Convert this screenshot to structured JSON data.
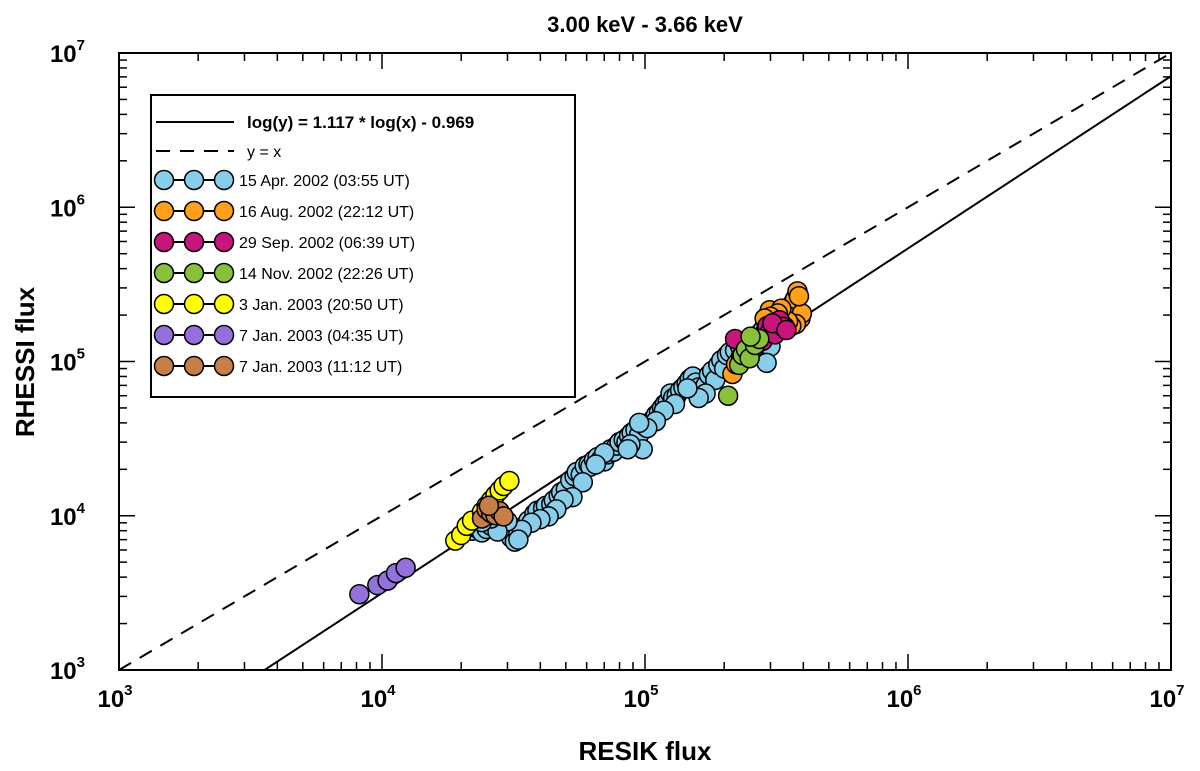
{
  "chart_data": {
    "type": "scatter",
    "title": "3.00 keV - 3.66 keV",
    "xlabel": "RESIK flux",
    "ylabel": "RHESSI flux",
    "xscale": "log",
    "yscale": "log",
    "xlim": [
      1000,
      10000000
    ],
    "ylim": [
      1000,
      10000000
    ],
    "x_ticks": [
      {
        "base": "10",
        "exp": "3"
      },
      {
        "base": "10",
        "exp": "4"
      },
      {
        "base": "10",
        "exp": "5"
      },
      {
        "base": "10",
        "exp": "6"
      },
      {
        "base": "10",
        "exp": "7"
      }
    ],
    "y_ticks": [
      {
        "base": "10",
        "exp": "3"
      },
      {
        "base": "10",
        "exp": "4"
      },
      {
        "base": "10",
        "exp": "5"
      },
      {
        "base": "10",
        "exp": "6"
      },
      {
        "base": "10",
        "exp": "7"
      }
    ],
    "fit": {
      "label": "log(y) = 1.117 * log(x) - 0.969",
      "slope": 1.117,
      "intercept": -0.969
    },
    "identity": {
      "label": "y = x"
    },
    "series": [
      {
        "name": "15 Apr. 2002  (03:55 UT)",
        "color": "#87ceeb",
        "points": [
          [
            21000,
            8500
          ],
          [
            22000,
            8000
          ],
          [
            23000,
            8300
          ],
          [
            24000,
            7800
          ],
          [
            25000,
            8200
          ],
          [
            26000,
            8600
          ],
          [
            27000,
            9000
          ],
          [
            28000,
            8400
          ],
          [
            29000,
            8800
          ],
          [
            30000,
            8600
          ],
          [
            31000,
            7200
          ],
          [
            32000,
            6800
          ],
          [
            33000,
            7600
          ],
          [
            35000,
            8700
          ],
          [
            36000,
            9300
          ],
          [
            38000,
            10300
          ],
          [
            39000,
            10800
          ],
          [
            41000,
            11200
          ],
          [
            42000,
            11600
          ],
          [
            44000,
            11900
          ],
          [
            45000,
            12600
          ],
          [
            47000,
            13500
          ],
          [
            48000,
            14200
          ],
          [
            50000,
            14800
          ],
          [
            52000,
            17000
          ],
          [
            54000,
            18000
          ],
          [
            55000,
            19200
          ],
          [
            57000,
            18500
          ],
          [
            59000,
            21000
          ],
          [
            61000,
            21500
          ],
          [
            62000,
            20800
          ],
          [
            64000,
            23000
          ],
          [
            66000,
            24000
          ],
          [
            68000,
            23200
          ],
          [
            70000,
            22500
          ],
          [
            72000,
            25000
          ],
          [
            74000,
            27000
          ],
          [
            76000,
            26000
          ],
          [
            78000,
            28500
          ],
          [
            80000,
            30000
          ],
          [
            83000,
            31000
          ],
          [
            85000,
            30000
          ],
          [
            87000,
            33000
          ],
          [
            89000,
            34500
          ],
          [
            92000,
            36000
          ],
          [
            95000,
            33500
          ],
          [
            98000,
            27000
          ],
          [
            100000,
            38000
          ],
          [
            104000,
            40000
          ],
          [
            107000,
            42000
          ],
          [
            110000,
            45000
          ],
          [
            113000,
            47000
          ],
          [
            116000,
            50000
          ],
          [
            119000,
            53000
          ],
          [
            122000,
            55000
          ],
          [
            125000,
            62000
          ],
          [
            128000,
            58000
          ],
          [
            132000,
            60000
          ],
          [
            136000,
            65000
          ],
          [
            140000,
            68000
          ],
          [
            144000,
            72000
          ],
          [
            148000,
            77000
          ],
          [
            152000,
            80000
          ],
          [
            156000,
            73000
          ],
          [
            160000,
            68000
          ],
          [
            165000,
            61000
          ],
          [
            170000,
            70000
          ],
          [
            175000,
            82000
          ],
          [
            180000,
            87000
          ],
          [
            185000,
            76000
          ],
          [
            190000,
            95000
          ],
          [
            195000,
            102000
          ],
          [
            200000,
            90000
          ],
          [
            205000,
            110000
          ],
          [
            210000,
            115000
          ],
          [
            220000,
            118000
          ],
          [
            230000,
            125000
          ],
          [
            240000,
            130000
          ],
          [
            250000,
            120000
          ],
          [
            260000,
            140000
          ],
          [
            270000,
            150000
          ],
          [
            280000,
            160000
          ],
          [
            290000,
            170000
          ],
          [
            300000,
            125000
          ],
          [
            310000,
            185000
          ],
          [
            320000,
            190000
          ],
          [
            330000,
            178000
          ],
          [
            340000,
            200000
          ],
          [
            350000,
            195000
          ],
          [
            360000,
            185000
          ],
          [
            250000,
            135000
          ],
          [
            230000,
            105000
          ],
          [
            290000,
            98000
          ],
          [
            170000,
            62000
          ],
          [
            160000,
            58000
          ],
          [
            145000,
            67000
          ],
          [
            130000,
            53000
          ],
          [
            118000,
            48000
          ],
          [
            110000,
            41000
          ],
          [
            102000,
            37000
          ],
          [
            95000,
            40000
          ],
          [
            88000,
            29000
          ],
          [
            86000,
            27000
          ],
          [
            70000,
            25500
          ],
          [
            65000,
            21500
          ],
          [
            58000,
            16500
          ],
          [
            53000,
            13200
          ],
          [
            49000,
            12700
          ],
          [
            46000,
            11000
          ],
          [
            43000,
            9900
          ],
          [
            40000,
            9500
          ],
          [
            37000,
            9000
          ],
          [
            34000,
            8100
          ],
          [
            33000,
            7000
          ],
          [
            30000,
            9200
          ],
          [
            27500,
            7900
          ],
          [
            26000,
            9600
          ],
          [
            24000,
            9100
          ]
        ]
      },
      {
        "name": "16 Aug. 2002 (22:12 UT)",
        "color": "#ff9f1a",
        "points": [
          [
            215000,
            83000
          ],
          [
            222000,
            96000
          ],
          [
            232000,
            108000
          ],
          [
            245000,
            118000
          ],
          [
            255000,
            126000
          ],
          [
            268000,
            135000
          ],
          [
            280000,
            148000
          ],
          [
            290000,
            165000
          ],
          [
            298000,
            215000
          ],
          [
            305000,
            178000
          ],
          [
            315000,
            185000
          ],
          [
            325000,
            192000
          ],
          [
            335000,
            200000
          ],
          [
            345000,
            210000
          ],
          [
            355000,
            225000
          ],
          [
            365000,
            240000
          ],
          [
            372000,
            255000
          ],
          [
            380000,
            285000
          ],
          [
            390000,
            190000
          ],
          [
            395000,
            205000
          ],
          [
            385000,
            265000
          ],
          [
            375000,
            175000
          ],
          [
            360000,
            170000
          ],
          [
            350000,
            182000
          ],
          [
            340000,
            168000
          ],
          [
            330000,
            220000
          ],
          [
            320000,
            205000
          ],
          [
            310000,
            160000
          ],
          [
            300000,
            195000
          ],
          [
            285000,
            190000
          ]
        ]
      },
      {
        "name": "29 Sep. 2002 (06:39 UT)",
        "color": "#c8157c",
        "points": [
          [
            220000,
            140000
          ],
          [
            260000,
            122000
          ],
          [
            280000,
            136000
          ],
          [
            292000,
            170000
          ],
          [
            300000,
            158000
          ],
          [
            312000,
            150000
          ],
          [
            325000,
            185000
          ],
          [
            335000,
            168000
          ],
          [
            305000,
            177000
          ],
          [
            345000,
            160000
          ]
        ]
      },
      {
        "name": "14 Nov. 2002 (22:26 UT)",
        "color": "#88c23a",
        "points": [
          [
            207000,
            60000
          ],
          [
            228000,
            95000
          ],
          [
            235000,
            110000
          ],
          [
            242000,
            120000
          ],
          [
            250000,
            105000
          ],
          [
            262000,
            128000
          ],
          [
            272000,
            140000
          ],
          [
            252000,
            145000
          ]
        ]
      },
      {
        "name": "3 Jan. 2003 (20:50 UT)",
        "color": "#ffff00",
        "points": [
          [
            19000,
            6900
          ],
          [
            20000,
            7500
          ],
          [
            21000,
            8600
          ],
          [
            22000,
            9300
          ],
          [
            24000,
            10600
          ],
          [
            25000,
            11600
          ],
          [
            26000,
            12600
          ],
          [
            27000,
            13600
          ],
          [
            28000,
            14600
          ],
          [
            29000,
            15600
          ],
          [
            30500,
            16800
          ]
        ]
      },
      {
        "name": "7 Jan. 2003 (04:35 UT)",
        "color": "#9370db",
        "points": [
          [
            8200,
            3100
          ],
          [
            9600,
            3550
          ],
          [
            10500,
            3800
          ],
          [
            11300,
            4250
          ],
          [
            12300,
            4600
          ]
        ]
      },
      {
        "name": "7 Jan. 2003 (11:12 UT)",
        "color": "#c87f45",
        "points": [
          [
            24000,
            9600
          ],
          [
            25000,
            11000
          ],
          [
            26000,
            10400
          ],
          [
            27000,
            10100
          ],
          [
            28000,
            10700
          ],
          [
            29000,
            9900
          ],
          [
            25500,
            11600
          ]
        ]
      }
    ]
  }
}
